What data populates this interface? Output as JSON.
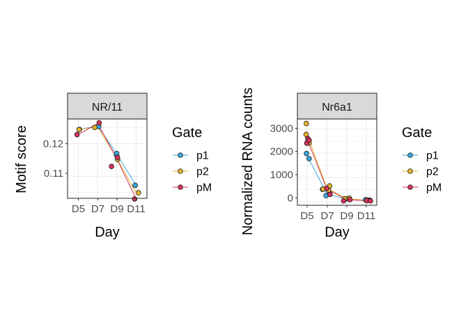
{
  "colors": {
    "p1": "#3aa6de",
    "p2": "#e6b42c",
    "pM": "#d8335a",
    "point_edge": "#1a1a1a",
    "grid": "#ebebeb",
    "panel_border": "#333333",
    "strip_fill": "#d9d9d9",
    "tick_text": "#4d4d4d"
  },
  "chart_data": [
    {
      "type": "line",
      "title": "NR/11",
      "xlabel": "Day",
      "ylabel": "Motif score",
      "categories": [
        "D5",
        "D7",
        "D9",
        "D11"
      ],
      "yticks": [
        0.11,
        0.12
      ],
      "ylim": [
        0.1032,
        0.1276
      ],
      "grid": true,
      "legend": {
        "title": "Gate",
        "position": "right",
        "entries": [
          "p1",
          "p2",
          "pM"
        ]
      },
      "series": [
        {
          "name": "p1",
          "color_key": "p1",
          "x": [
            1,
            2,
            3,
            4
          ],
          "values": [
            0.1243,
            0.1255,
            0.1168,
            0.1071
          ],
          "points": [
            [
              1.05,
              0.1244
            ],
            [
              2.06,
              0.1253
            ],
            [
              2.98,
              0.1165
            ],
            [
              2.99,
              0.117
            ],
            [
              3.95,
              0.1072
            ]
          ]
        },
        {
          "name": "p2",
          "color_key": "p2",
          "x": [
            1,
            2,
            3,
            4
          ],
          "values": [
            0.1243,
            0.1252,
            0.1155,
            0.1049
          ],
          "points": [
            [
              1.04,
              0.1243
            ],
            [
              1.85,
              0.125
            ],
            [
              3.03,
              0.1152
            ],
            [
              4.12,
              0.1049
            ]
          ]
        },
        {
          "name": "pM",
          "color_key": "pM",
          "x": [
            1,
            2,
            3,
            4
          ],
          "values": [
            0.1228,
            0.1262,
            0.1154,
            0.103
          ],
          "points": [
            [
              0.93,
              0.1228
            ],
            [
              2.08,
              0.1264
            ],
            [
              2.72,
              0.113
            ],
            [
              3.03,
              0.1158
            ],
            [
              3.92,
              0.103
            ]
          ]
        }
      ]
    },
    {
      "type": "line",
      "title": "Nr6a1",
      "xlabel": "Day",
      "ylabel": "Normalized RNA counts",
      "categories": [
        "D5",
        "D7",
        "D9",
        "D11"
      ],
      "yticks": [
        0,
        1000,
        2000,
        3000
      ],
      "ylim": [
        -150,
        3420
      ],
      "grid": true,
      "legend": {
        "title": "Gate",
        "position": "right",
        "entries": [
          "p1",
          "p2",
          "pM"
        ]
      },
      "series": [
        {
          "name": "p1",
          "color_key": "p1",
          "x": [
            1,
            2,
            3,
            4
          ],
          "values": [
            1900,
            330,
            100,
            60
          ],
          "points": [
            [
              0.97,
              1990
            ],
            [
              1.1,
              1780
            ],
            [
              1.78,
              510
            ],
            [
              1.96,
              250
            ],
            [
              2.15,
              330
            ],
            [
              2.95,
              110
            ],
            [
              3.12,
              140
            ],
            [
              3.96,
              80
            ],
            [
              4.18,
              60
            ]
          ]
        },
        {
          "name": "p2",
          "color_key": "p2",
          "x": [
            1,
            2,
            3,
            4
          ],
          "values": [
            2780,
            560,
            120,
            60
          ],
          "points": [
            [
              0.96,
              3230
            ],
            [
              0.95,
              2780
            ],
            [
              1.1,
              2430
            ],
            [
              1.81,
              520
            ],
            [
              2.08,
              480
            ],
            [
              2.14,
              650
            ],
            [
              2.91,
              120
            ],
            [
              3.14,
              140
            ],
            [
              4.04,
              70
            ],
            [
              4.19,
              50
            ]
          ]
        },
        {
          "name": "pM",
          "color_key": "pM",
          "x": [
            1,
            2,
            3,
            4
          ],
          "values": [
            2580,
            530,
            80,
            40
          ],
          "points": [
            [
              0.98,
              2420
            ],
            [
              1.03,
              2610
            ],
            [
              1.1,
              2540
            ],
            [
              1.99,
              550
            ],
            [
              2.16,
              300
            ],
            [
              2.85,
              30
            ],
            [
              3.17,
              80
            ],
            [
              4.02,
              40
            ],
            [
              4.21,
              30
            ]
          ]
        }
      ]
    }
  ]
}
